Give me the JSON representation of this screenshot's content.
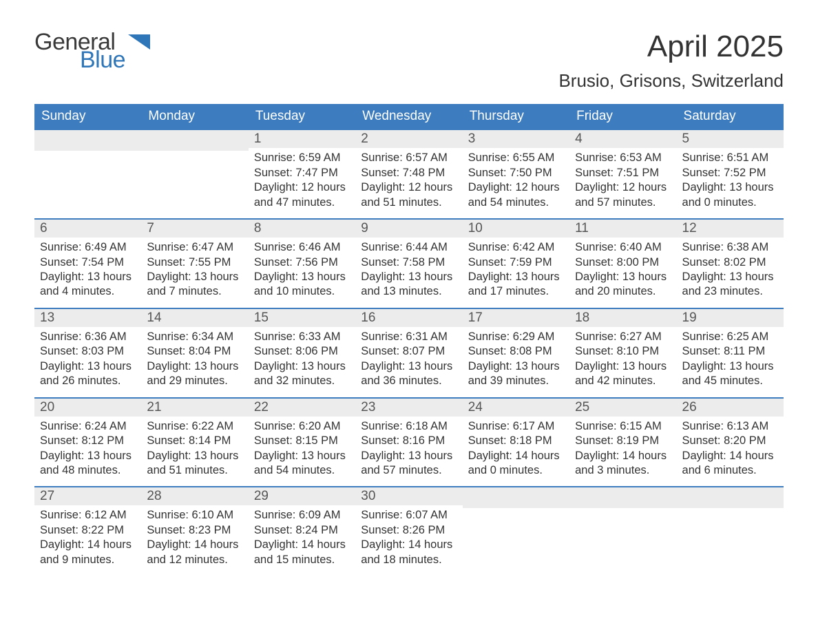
{
  "logo": {
    "text_general": "General",
    "text_blue": "Blue",
    "arrow_color": "#2f76b8"
  },
  "title": "April 2025",
  "location": "Brusio, Grisons, Switzerland",
  "weekday_header_bg": "#3d7cbf",
  "weekday_header_fg": "#ffffff",
  "daynum_bg": "#ececec",
  "week_border_color": "#3d7cbf",
  "text_color": "#333333",
  "weekdays": [
    "Sunday",
    "Monday",
    "Tuesday",
    "Wednesday",
    "Thursday",
    "Friday",
    "Saturday"
  ],
  "weeks": [
    [
      {
        "day": "",
        "sunrise": "",
        "sunset": "",
        "daylight": ""
      },
      {
        "day": "",
        "sunrise": "",
        "sunset": "",
        "daylight": ""
      },
      {
        "day": "1",
        "sunrise": "Sunrise: 6:59 AM",
        "sunset": "Sunset: 7:47 PM",
        "daylight": "Daylight: 12 hours and 47 minutes."
      },
      {
        "day": "2",
        "sunrise": "Sunrise: 6:57 AM",
        "sunset": "Sunset: 7:48 PM",
        "daylight": "Daylight: 12 hours and 51 minutes."
      },
      {
        "day": "3",
        "sunrise": "Sunrise: 6:55 AM",
        "sunset": "Sunset: 7:50 PM",
        "daylight": "Daylight: 12 hours and 54 minutes."
      },
      {
        "day": "4",
        "sunrise": "Sunrise: 6:53 AM",
        "sunset": "Sunset: 7:51 PM",
        "daylight": "Daylight: 12 hours and 57 minutes."
      },
      {
        "day": "5",
        "sunrise": "Sunrise: 6:51 AM",
        "sunset": "Sunset: 7:52 PM",
        "daylight": "Daylight: 13 hours and 0 minutes."
      }
    ],
    [
      {
        "day": "6",
        "sunrise": "Sunrise: 6:49 AM",
        "sunset": "Sunset: 7:54 PM",
        "daylight": "Daylight: 13 hours and 4 minutes."
      },
      {
        "day": "7",
        "sunrise": "Sunrise: 6:47 AM",
        "sunset": "Sunset: 7:55 PM",
        "daylight": "Daylight: 13 hours and 7 minutes."
      },
      {
        "day": "8",
        "sunrise": "Sunrise: 6:46 AM",
        "sunset": "Sunset: 7:56 PM",
        "daylight": "Daylight: 13 hours and 10 minutes."
      },
      {
        "day": "9",
        "sunrise": "Sunrise: 6:44 AM",
        "sunset": "Sunset: 7:58 PM",
        "daylight": "Daylight: 13 hours and 13 minutes."
      },
      {
        "day": "10",
        "sunrise": "Sunrise: 6:42 AM",
        "sunset": "Sunset: 7:59 PM",
        "daylight": "Daylight: 13 hours and 17 minutes."
      },
      {
        "day": "11",
        "sunrise": "Sunrise: 6:40 AM",
        "sunset": "Sunset: 8:00 PM",
        "daylight": "Daylight: 13 hours and 20 minutes."
      },
      {
        "day": "12",
        "sunrise": "Sunrise: 6:38 AM",
        "sunset": "Sunset: 8:02 PM",
        "daylight": "Daylight: 13 hours and 23 minutes."
      }
    ],
    [
      {
        "day": "13",
        "sunrise": "Sunrise: 6:36 AM",
        "sunset": "Sunset: 8:03 PM",
        "daylight": "Daylight: 13 hours and 26 minutes."
      },
      {
        "day": "14",
        "sunrise": "Sunrise: 6:34 AM",
        "sunset": "Sunset: 8:04 PM",
        "daylight": "Daylight: 13 hours and 29 minutes."
      },
      {
        "day": "15",
        "sunrise": "Sunrise: 6:33 AM",
        "sunset": "Sunset: 8:06 PM",
        "daylight": "Daylight: 13 hours and 32 minutes."
      },
      {
        "day": "16",
        "sunrise": "Sunrise: 6:31 AM",
        "sunset": "Sunset: 8:07 PM",
        "daylight": "Daylight: 13 hours and 36 minutes."
      },
      {
        "day": "17",
        "sunrise": "Sunrise: 6:29 AM",
        "sunset": "Sunset: 8:08 PM",
        "daylight": "Daylight: 13 hours and 39 minutes."
      },
      {
        "day": "18",
        "sunrise": "Sunrise: 6:27 AM",
        "sunset": "Sunset: 8:10 PM",
        "daylight": "Daylight: 13 hours and 42 minutes."
      },
      {
        "day": "19",
        "sunrise": "Sunrise: 6:25 AM",
        "sunset": "Sunset: 8:11 PM",
        "daylight": "Daylight: 13 hours and 45 minutes."
      }
    ],
    [
      {
        "day": "20",
        "sunrise": "Sunrise: 6:24 AM",
        "sunset": "Sunset: 8:12 PM",
        "daylight": "Daylight: 13 hours and 48 minutes."
      },
      {
        "day": "21",
        "sunrise": "Sunrise: 6:22 AM",
        "sunset": "Sunset: 8:14 PM",
        "daylight": "Daylight: 13 hours and 51 minutes."
      },
      {
        "day": "22",
        "sunrise": "Sunrise: 6:20 AM",
        "sunset": "Sunset: 8:15 PM",
        "daylight": "Daylight: 13 hours and 54 minutes."
      },
      {
        "day": "23",
        "sunrise": "Sunrise: 6:18 AM",
        "sunset": "Sunset: 8:16 PM",
        "daylight": "Daylight: 13 hours and 57 minutes."
      },
      {
        "day": "24",
        "sunrise": "Sunrise: 6:17 AM",
        "sunset": "Sunset: 8:18 PM",
        "daylight": "Daylight: 14 hours and 0 minutes."
      },
      {
        "day": "25",
        "sunrise": "Sunrise: 6:15 AM",
        "sunset": "Sunset: 8:19 PM",
        "daylight": "Daylight: 14 hours and 3 minutes."
      },
      {
        "day": "26",
        "sunrise": "Sunrise: 6:13 AM",
        "sunset": "Sunset: 8:20 PM",
        "daylight": "Daylight: 14 hours and 6 minutes."
      }
    ],
    [
      {
        "day": "27",
        "sunrise": "Sunrise: 6:12 AM",
        "sunset": "Sunset: 8:22 PM",
        "daylight": "Daylight: 14 hours and 9 minutes."
      },
      {
        "day": "28",
        "sunrise": "Sunrise: 6:10 AM",
        "sunset": "Sunset: 8:23 PM",
        "daylight": "Daylight: 14 hours and 12 minutes."
      },
      {
        "day": "29",
        "sunrise": "Sunrise: 6:09 AM",
        "sunset": "Sunset: 8:24 PM",
        "daylight": "Daylight: 14 hours and 15 minutes."
      },
      {
        "day": "30",
        "sunrise": "Sunrise: 6:07 AM",
        "sunset": "Sunset: 8:26 PM",
        "daylight": "Daylight: 14 hours and 18 minutes."
      },
      {
        "day": "",
        "sunrise": "",
        "sunset": "",
        "daylight": ""
      },
      {
        "day": "",
        "sunrise": "",
        "sunset": "",
        "daylight": ""
      },
      {
        "day": "",
        "sunrise": "",
        "sunset": "",
        "daylight": ""
      }
    ]
  ]
}
